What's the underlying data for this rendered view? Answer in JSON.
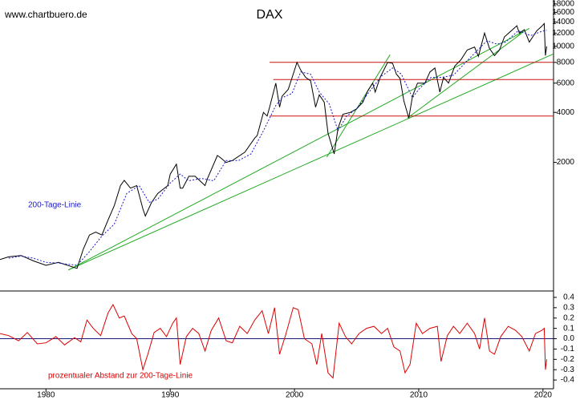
{
  "watermark": "www.chartbuero.de",
  "chart_data": [
    {
      "type": "line",
      "title": "DAX",
      "log_scale": true,
      "xlim": [
        1976.3,
        2020.85
      ],
      "xticks": [
        1980,
        1990,
        2000,
        2010,
        2020
      ],
      "ylim": [
        340,
        19000
      ],
      "yticks": [
        2000,
        4000,
        6000,
        8000,
        10000,
        12000,
        14000,
        16000,
        18000
      ],
      "series": [
        {
          "name": "DAX",
          "color": "#000000",
          "x": [
            1976.3,
            1977,
            1978,
            1979,
            1980,
            1981,
            1982.5,
            1983,
            1983.5,
            1984,
            1984.5,
            1985,
            1985.5,
            1986,
            1986.3,
            1986.8,
            1987.3,
            1987.8,
            1988,
            1988.5,
            1989,
            1989.8,
            1990,
            1990.5,
            1990.8,
            1991,
            1991.5,
            1992,
            1992.8,
            1993,
            1993.8,
            1994,
            1994.5,
            1995,
            1995.8,
            1996,
            1996.8,
            1997,
            1997.5,
            1997.8,
            1998,
            1998.5,
            1998.8,
            1999,
            1999.5,
            1999.9,
            2000.2,
            2000.5,
            2000.9,
            2001.3,
            2001.7,
            2002,
            2002.4,
            2002.7,
            2003.2,
            2003.5,
            2003.9,
            2004.5,
            2005,
            2005.5,
            2005.9,
            2006.3,
            2006.5,
            2006.9,
            2007.5,
            2007.9,
            2008.2,
            2008.5,
            2008.8,
            2009.2,
            2009.5,
            2009.9,
            2010.5,
            2010.9,
            2011.3,
            2011.7,
            2012,
            2012.4,
            2012.9,
            2013.4,
            2013.9,
            2014.5,
            2014.8,
            2015.3,
            2015.7,
            2016.1,
            2016.5,
            2016.9,
            2017.5,
            2017.9,
            2018.1,
            2018.5,
            2018.9,
            2019.5,
            2019.9,
            2020.1,
            2020.2,
            2020.3
          ],
          "values": [
            520,
            540,
            550,
            510,
            480,
            500,
            460,
            600,
            730,
            760,
            730,
            900,
            1100,
            1450,
            1560,
            1400,
            1450,
            1050,
            950,
            1150,
            1300,
            1450,
            1700,
            1950,
            1400,
            1400,
            1650,
            1650,
            1450,
            1600,
            2200,
            2150,
            2000,
            2050,
            2250,
            2300,
            2800,
            2900,
            4000,
            3800,
            4300,
            6000,
            4300,
            5000,
            5500,
            6800,
            8000,
            7200,
            6500,
            6200,
            4300,
            5100,
            4600,
            3000,
            2250,
            3200,
            3900,
            4000,
            4200,
            4600,
            5400,
            6000,
            5300,
            6500,
            8000,
            7900,
            6800,
            6400,
            4700,
            3700,
            5000,
            6000,
            6000,
            7000,
            7400,
            5300,
            6500,
            6000,
            7600,
            8300,
            9500,
            9900,
            8700,
            12000,
            9700,
            8800,
            9500,
            11400,
            12500,
            13300,
            12000,
            12600,
            10600,
            12400,
            13200,
            13700,
            8800,
            10000
          ]
        },
        {
          "name": "200-Tage-Linie",
          "color": "#1a1acc",
          "x": [
            1977,
            1978,
            1979,
            1980,
            1981,
            1982.5,
            1983.5,
            1984.5,
            1985.5,
            1986.5,
            1987.5,
            1988.3,
            1989,
            1990,
            1990.8,
            1991.5,
            1992.5,
            1993.5,
            1994.5,
            1995.5,
            1996.5,
            1997.5,
            1998.5,
            1999,
            1999.8,
            2000.5,
            2001.3,
            2002,
            2002.8,
            2003.5,
            2004.2,
            2005,
            2006,
            2007,
            2007.9,
            2008.6,
            2009.5,
            2010,
            2011,
            2011.9,
            2012.8,
            2013.7,
            2014.7,
            2015.5,
            2016.3,
            2017,
            2018,
            2019,
            2019.9,
            2020.3
          ],
          "values": [
            530,
            545,
            530,
            500,
            495,
            480,
            580,
            720,
            850,
            1300,
            1450,
            1150,
            1200,
            1500,
            1700,
            1550,
            1600,
            1550,
            2050,
            2050,
            2250,
            3100,
            4400,
            4900,
            5200,
            7000,
            6800,
            5300,
            4500,
            3100,
            3800,
            4200,
            5300,
            6600,
            7400,
            6800,
            4900,
            5500,
            6500,
            6500,
            6700,
            7900,
            9400,
            10800,
            10300,
            10600,
            12400,
            11600,
            12300,
            12500
          ]
        }
      ],
      "trend_lines": [
        {
          "color": "#22aa22",
          "x": [
            1981.8,
            2020.85
          ],
          "values": [
            450,
            9000
          ]
        },
        {
          "color": "#22aa22",
          "x": [
            1981.8,
            2018.9
          ],
          "values": [
            450,
            12800
          ]
        },
        {
          "color": "#22aa22",
          "x": [
            2002.6,
            2007.7
          ],
          "values": [
            2150,
            8900
          ]
        },
        {
          "color": "#22aa22",
          "x": [
            2009.1,
            2018.3
          ],
          "values": [
            3700,
            12000
          ]
        },
        {
          "color": "#cc1111",
          "x": [
            1998,
            2020.85
          ],
          "values": [
            8000,
            8000
          ]
        },
        {
          "color": "#cc1111",
          "x": [
            1998.3,
            2020.85
          ],
          "values": [
            6300,
            6300
          ]
        },
        {
          "color": "#cc1111",
          "x": [
            1998,
            2020.85
          ],
          "values": [
            3800,
            3800
          ]
        }
      ]
    },
    {
      "type": "line",
      "xlim": [
        1976.3,
        2020.85
      ],
      "ylim": [
        -0.477,
        0.454
      ],
      "yticks": [
        0.4,
        0.3,
        0.2,
        0.1,
        {
          "value": 0,
          "label": "0.0"
        },
        -0.1,
        -0.2,
        -0.3,
        -0.4
      ],
      "series": [
        {
          "name": "prozentualer Abstand zur 200-Tage-Linie",
          "color": "#dd0000",
          "x": [
            1976.3,
            1977,
            1977.8,
            1978.5,
            1979.3,
            1980,
            1980.8,
            1981.5,
            1982.3,
            1982.8,
            1983.3,
            1983.8,
            1984.4,
            1985,
            1985.4,
            1985.9,
            1986.3,
            1986.9,
            1987.3,
            1987.8,
            1988.2,
            1988.7,
            1989.2,
            1989.7,
            1990.2,
            1990.5,
            1990.8,
            1991.3,
            1991.8,
            1992.3,
            1992.8,
            1993.3,
            1993.9,
            1994.5,
            1995,
            1995.6,
            1996.2,
            1996.8,
            1997.4,
            1997.9,
            1998.4,
            1998.8,
            1999.3,
            1999.9,
            2000.3,
            2000.8,
            2001.4,
            2001.8,
            2002.2,
            2002.7,
            2003.1,
            2003.6,
            2004.1,
            2004.6,
            2005.2,
            2005.8,
            2006.4,
            2007,
            2007.5,
            2008,
            2008.5,
            2008.9,
            2009.3,
            2009.8,
            2010.3,
            2010.9,
            2011.5,
            2011.8,
            2012.3,
            2012.8,
            2013.3,
            2013.9,
            2014.5,
            2014.9,
            2015.3,
            2015.7,
            2016.1,
            2016.6,
            2017.2,
            2017.8,
            2018.3,
            2018.9,
            2019.4,
            2019.9,
            2020.1,
            2020.2,
            2020.3
          ],
          "values": [
            0.05,
            0.03,
            -0.02,
            0.06,
            -0.05,
            -0.04,
            0.02,
            -0.06,
            0.01,
            -0.03,
            0.18,
            0.1,
            0.03,
            0.25,
            0.33,
            0.2,
            0.22,
            0.05,
            0.0,
            -0.3,
            -0.15,
            0.06,
            0.1,
            0.02,
            0.15,
            0.2,
            -0.25,
            0.02,
            0.1,
            0.05,
            -0.12,
            0.08,
            0.2,
            -0.02,
            -0.04,
            0.12,
            0.05,
            0.18,
            0.27,
            0.05,
            0.3,
            -0.15,
            0.04,
            0.3,
            0.28,
            0.0,
            -0.05,
            -0.25,
            0.05,
            -0.33,
            -0.38,
            0.15,
            0.02,
            -0.05,
            0.05,
            0.1,
            0.12,
            0.05,
            0.1,
            -0.08,
            -0.12,
            -0.33,
            -0.25,
            0.15,
            0.05,
            0.1,
            0.12,
            -0.22,
            0.03,
            0.12,
            0.05,
            0.15,
            0.05,
            -0.1,
            0.2,
            -0.12,
            -0.15,
            0.02,
            0.12,
            0.08,
            0.02,
            -0.12,
            0.05,
            0.08,
            0.1,
            -0.3,
            -0.2
          ]
        }
      ]
    }
  ]
}
